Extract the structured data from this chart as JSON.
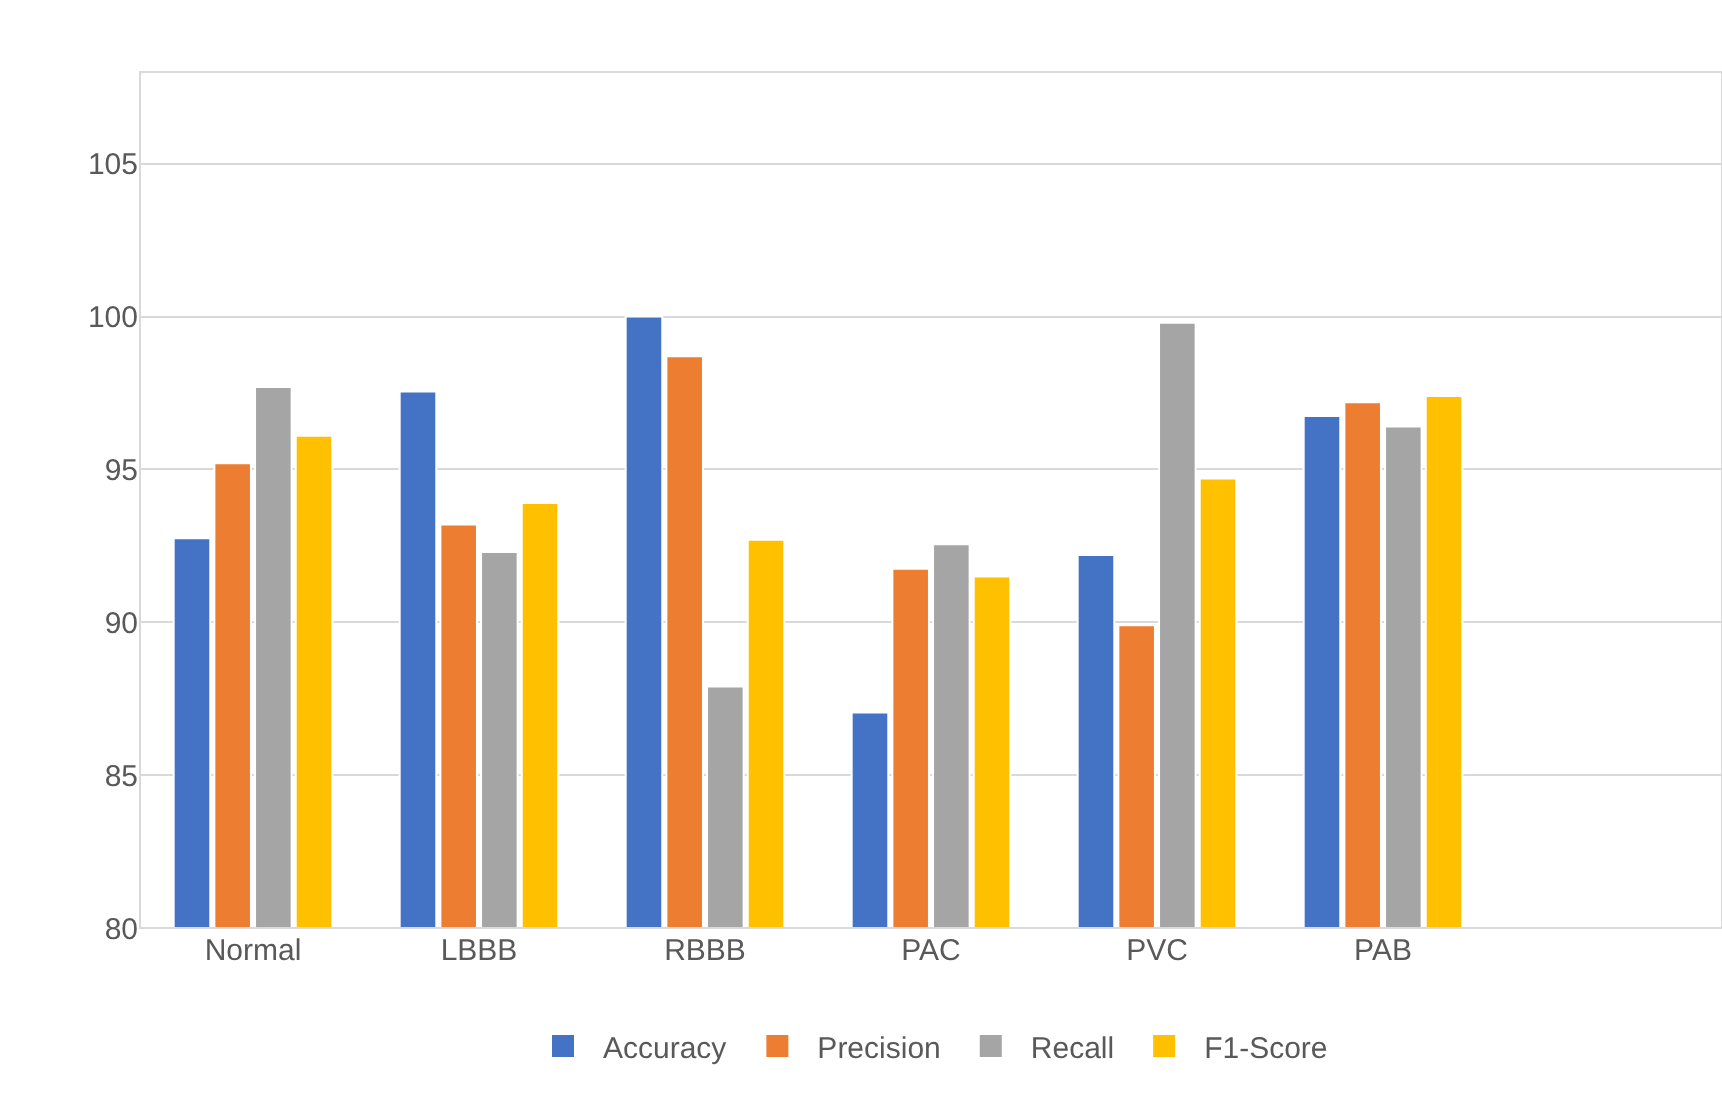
{
  "chart_data": {
    "type": "bar",
    "categories": [
      "Normal",
      "LBBB",
      "RBBB",
      "PAC",
      "PVC",
      "PAB",
      null
    ],
    "series": [
      {
        "name": "Accuracy",
        "color": "#4472c4",
        "values": [
          92.75,
          97.55,
          100,
          87.05,
          92.2,
          96.75,
          null
        ]
      },
      {
        "name": "Precision",
        "color": "#ed7d31",
        "values": [
          95.2,
          93.2,
          98.7,
          91.75,
          89.9,
          97.2,
          null
        ]
      },
      {
        "name": "Recall",
        "color": "#a5a5a5",
        "values": [
          97.7,
          92.3,
          87.9,
          92.55,
          99.8,
          96.4,
          null
        ]
      },
      {
        "name": "F1-Score",
        "color": "#ffc000",
        "values": [
          96.1,
          93.9,
          92.7,
          91.5,
          94.7,
          97.4,
          null
        ]
      }
    ],
    "ylim": [
      80,
      108
    ],
    "yticks": [
      80,
      85,
      90,
      95,
      100,
      105
    ],
    "grid": "y",
    "legend": "bottom"
  }
}
